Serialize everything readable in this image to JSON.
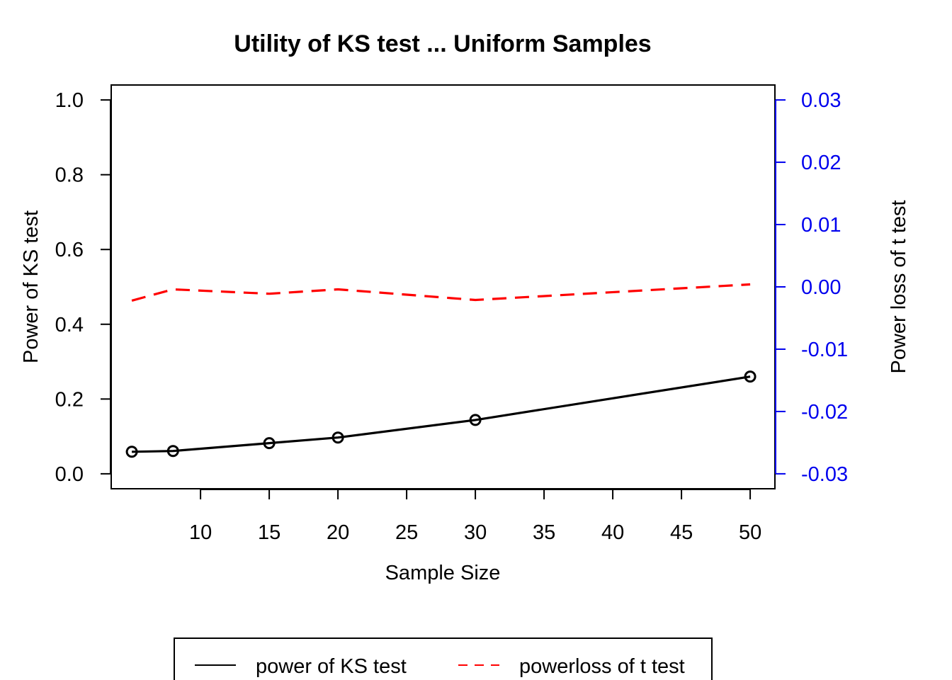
{
  "chart_data": {
    "type": "line",
    "title": "Utility of KS test ... Uniform Samples",
    "xlabel": "Sample Size",
    "ylabel": "Power of KS test",
    "y2label": "Power loss of t test",
    "xlim": [
      3.5,
      51.8
    ],
    "ylim": [
      -0.04,
      1.04
    ],
    "y2lim": [
      -0.0324,
      0.0324
    ],
    "x_ticks": [
      "10",
      "15",
      "20",
      "25",
      "30",
      "35",
      "40",
      "45",
      "50"
    ],
    "y_ticks": [
      "0.0",
      "0.2",
      "0.4",
      "0.6",
      "0.8",
      "1.0"
    ],
    "y2_ticks": [
      "-0.03",
      "-0.02",
      "-0.01",
      "0.00",
      "0.01",
      "0.02",
      "0.03"
    ],
    "x": [
      5,
      8,
      15,
      20,
      30,
      50
    ],
    "series": [
      {
        "name": "power of KS test",
        "axis": "left",
        "color": "#000000",
        "style": "solid",
        "markers": "open-circle",
        "values": [
          0.059,
          0.061,
          0.082,
          0.097,
          0.144,
          0.26
        ]
      },
      {
        "name": "powerloss of t test",
        "axis": "right",
        "color": "#ff0000",
        "style": "dashed",
        "markers": "none",
        "values": [
          -0.0022,
          -0.0004,
          -0.0011,
          -0.0004,
          -0.0021,
          0.0004
        ]
      }
    ],
    "right_axis_color": "#0000ee",
    "legend_position": "bottom",
    "grid": false
  }
}
